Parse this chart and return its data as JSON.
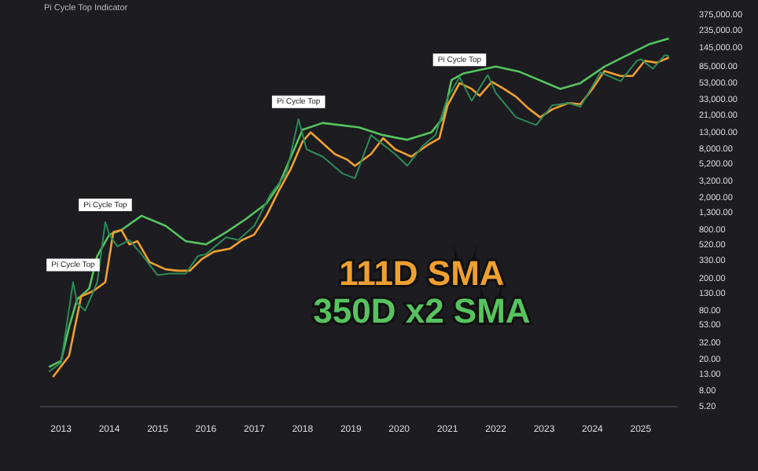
{
  "chart_data": {
    "type": "line",
    "title": "Pi Cycle Top Indicator",
    "log": true,
    "xlim": [
      "2012-08",
      "2025-10"
    ],
    "xticks": [
      "2013",
      "2014",
      "2015",
      "2016",
      "2017",
      "2018",
      "2019",
      "2020",
      "2021",
      "2022",
      "2023",
      "2024",
      "2025"
    ],
    "ylim": [
      5.2,
      375000
    ],
    "yticks": [
      {
        "value": 5.2,
        "label": "5.20"
      },
      {
        "value": 8,
        "label": "8.00"
      },
      {
        "value": 13,
        "label": "13.00"
      },
      {
        "value": 20,
        "label": "20.00"
      },
      {
        "value": 32,
        "label": "32.00"
      },
      {
        "value": 53,
        "label": "53.00"
      },
      {
        "value": 80,
        "label": "80.00"
      },
      {
        "value": 130,
        "label": "130.00"
      },
      {
        "value": 200,
        "label": "200.00"
      },
      {
        "value": 330,
        "label": "330.00"
      },
      {
        "value": 520,
        "label": "520.00"
      },
      {
        "value": 800,
        "label": "800.00"
      },
      {
        "value": 1300,
        "label": "1,300.00"
      },
      {
        "value": 2000,
        "label": "2,000.00"
      },
      {
        "value": 3200,
        "label": "3,200.00"
      },
      {
        "value": 5200,
        "label": "5,200.00"
      },
      {
        "value": 8000,
        "label": "8,000.00"
      },
      {
        "value": 13000,
        "label": "13,000.00"
      },
      {
        "value": 21000,
        "label": "21,000.00"
      },
      {
        "value": 33000,
        "label": "33,000.00"
      },
      {
        "value": 53000,
        "label": "53,000.00"
      },
      {
        "value": 85000,
        "label": "85,000.00"
      },
      {
        "value": 145000,
        "label": "145,000.00"
      },
      {
        "value": 235000,
        "label": "235,000.00"
      },
      {
        "value": 375000,
        "label": "375,000.00"
      }
    ],
    "series": [
      {
        "color": "#2e8b57",
        "x": [
          "2012-10",
          "2013-01",
          "2013-04",
          "2013-05",
          "2013-07",
          "2013-10",
          "2013-12",
          "2014-01",
          "2014-03",
          "2014-06",
          "2014-09",
          "2015-01",
          "2015-04",
          "2015-08",
          "2015-11",
          "2016-01",
          "2016-06",
          "2016-09",
          "2017-01",
          "2017-05",
          "2017-09",
          "2017-12",
          "2018-02",
          "2018-06",
          "2018-11",
          "2019-02",
          "2019-06",
          "2019-12",
          "2020-03",
          "2020-07",
          "2020-10",
          "2021-01",
          "2021-04",
          "2021-07",
          "2021-11",
          "2022-01",
          "2022-06",
          "2022-11",
          "2023-03",
          "2023-07",
          "2023-10",
          "2024-03",
          "2024-08",
          "2024-12",
          "2025-01",
          "2025-04",
          "2025-07",
          "2025-08"
        ],
        "values": [
          14,
          18,
          180,
          100,
          80,
          180,
          1000,
          700,
          500,
          600,
          400,
          220,
          230,
          230,
          380,
          400,
          650,
          600,
          900,
          2200,
          4000,
          19000,
          8000,
          6500,
          4000,
          3500,
          12000,
          7000,
          5000,
          9000,
          12000,
          35000,
          63000,
          32000,
          67000,
          40000,
          20000,
          16000,
          28000,
          30000,
          27000,
          72000,
          56000,
          100000,
          105000,
          80000,
          118000,
          115000
        ]
      },
      {
        "name": "111D SMA",
        "color": "#f0a030",
        "x": [
          "2012-11",
          "2013-03",
          "2013-06",
          "2013-09",
          "2013-12",
          "2014-02",
          "2014-04",
          "2014-06",
          "2014-08",
          "2014-11",
          "2015-03",
          "2015-06",
          "2015-09",
          "2015-12",
          "2016-03",
          "2016-07",
          "2016-10",
          "2017-01",
          "2017-04",
          "2017-07",
          "2017-10",
          "2018-01",
          "2018-03",
          "2018-09",
          "2018-12",
          "2019-02",
          "2019-06",
          "2019-09",
          "2019-12",
          "2020-04",
          "2020-08",
          "2020-11",
          "2021-01",
          "2021-04",
          "2021-07",
          "2021-09",
          "2021-12",
          "2022-03",
          "2022-06",
          "2022-09",
          "2022-12",
          "2023-03",
          "2023-07",
          "2023-10",
          "2024-01",
          "2024-04",
          "2024-08",
          "2024-11",
          "2025-02",
          "2025-05",
          "2025-08"
        ],
        "values": [
          12,
          22,
          120,
          140,
          180,
          750,
          800,
          530,
          580,
          320,
          260,
          250,
          250,
          350,
          430,
          470,
          600,
          700,
          1200,
          2400,
          4500,
          10000,
          13000,
          7000,
          6000,
          5000,
          7000,
          11000,
          8000,
          6500,
          9000,
          11000,
          28000,
          53000,
          45000,
          37000,
          55000,
          45000,
          36000,
          26000,
          20000,
          25000,
          30000,
          29000,
          45000,
          75000,
          65000,
          65000,
          100000,
          95000,
          110000
        ]
      },
      {
        "name": "350D x2 SMA",
        "color": "#57c35f",
        "x": [
          "2012-10",
          "2013-01",
          "2013-03",
          "2013-05",
          "2013-08",
          "2013-10",
          "2014-01",
          "2014-04",
          "2014-09",
          "2015-03",
          "2015-08",
          "2016-01",
          "2016-06",
          "2016-11",
          "2017-04",
          "2017-07",
          "2018-01",
          "2018-06",
          "2019-03",
          "2019-09",
          "2020-03",
          "2020-09",
          "2020-12",
          "2021-02",
          "2021-05",
          "2022-01",
          "2022-07",
          "2023-05",
          "2023-10",
          "2024-04",
          "2024-10",
          "2025-03",
          "2025-08"
        ],
        "values": [
          16,
          19,
          50,
          110,
          150,
          380,
          700,
          800,
          1200,
          900,
          580,
          530,
          750,
          1100,
          1700,
          2800,
          14000,
          17000,
          15000,
          12000,
          10500,
          13000,
          20000,
          58000,
          70000,
          85000,
          73000,
          45000,
          53000,
          85000,
          120000,
          160000,
          190000
        ]
      }
    ],
    "annotations": [
      {
        "text": "Pi Cycle Top",
        "x": "2013-04",
        "y": 180
      },
      {
        "text": "Pi Cycle Top",
        "x": "2013-12",
        "y": 1000
      },
      {
        "text": "Pi Cycle Top",
        "x": "2017-12",
        "y": 19000
      },
      {
        "text": "Pi Cycle Top",
        "x": "2021-04",
        "y": 63000
      }
    ]
  }
}
